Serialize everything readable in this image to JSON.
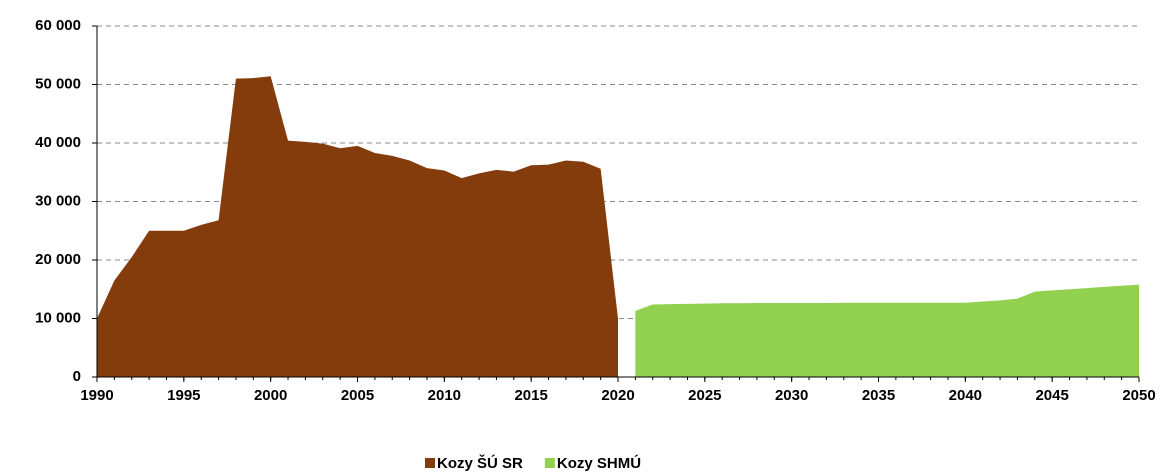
{
  "chart_data": {
    "type": "area",
    "x": [
      1990,
      1991,
      1992,
      1993,
      1994,
      1995,
      1996,
      1997,
      1998,
      1999,
      2000,
      2001,
      2002,
      2003,
      2004,
      2005,
      2006,
      2007,
      2008,
      2009,
      2010,
      2011,
      2012,
      2013,
      2014,
      2015,
      2016,
      2017,
      2018,
      2019,
      2020,
      2021,
      2022,
      2023,
      2024,
      2025,
      2026,
      2027,
      2028,
      2029,
      2030,
      2031,
      2032,
      2033,
      2034,
      2035,
      2036,
      2037,
      2038,
      2039,
      2040,
      2041,
      2042,
      2043,
      2044,
      2045,
      2046,
      2047,
      2048,
      2049,
      2050
    ],
    "series": [
      {
        "name": "Kozy ŠÚ SR",
        "color": "#843c0c",
        "values": [
          10000,
          16500,
          20500,
          25000,
          25000,
          25000,
          26000,
          26800,
          51000,
          51100,
          51400,
          40400,
          40200,
          39900,
          39100,
          39500,
          38300,
          37800,
          37000,
          35700,
          35300,
          34000,
          34800,
          35400,
          35100,
          36200,
          36300,
          37000,
          36800,
          35600,
          10000,
          null,
          null,
          null,
          null,
          null,
          null,
          null,
          null,
          null,
          null,
          null,
          null,
          null,
          null,
          null,
          null,
          null,
          null,
          null,
          null,
          null,
          null,
          null,
          null,
          null,
          null,
          null,
          null,
          null,
          null
        ]
      },
      {
        "name": "Kozy SHMÚ",
        "color": "#92d050",
        "values": [
          null,
          null,
          null,
          null,
          null,
          null,
          null,
          null,
          null,
          null,
          null,
          null,
          null,
          null,
          null,
          null,
          null,
          null,
          null,
          null,
          null,
          null,
          null,
          null,
          null,
          null,
          null,
          null,
          null,
          null,
          null,
          11300,
          12400,
          12450,
          12500,
          12550,
          12600,
          12600,
          12650,
          12650,
          12650,
          12650,
          12650,
          12700,
          12700,
          12700,
          12700,
          12700,
          12700,
          12700,
          12700,
          12900,
          13100,
          13400,
          14600,
          14800,
          15000,
          15200,
          15400,
          15600,
          15800
        ]
      }
    ],
    "xlim": [
      1990,
      2050
    ],
    "xticks": [
      1990,
      1995,
      2000,
      2005,
      2010,
      2015,
      2020,
      2025,
      2030,
      2035,
      2040,
      2045,
      2050
    ],
    "ylim": [
      0,
      60000
    ],
    "yticks": [
      0,
      {
        "value": 10000,
        "label": "10 000"
      },
      {
        "value": 20000,
        "label": "20 000"
      },
      {
        "value": 30000,
        "label": "30 000"
      },
      {
        "value": 40000,
        "label": "40 000"
      },
      {
        "value": 50000,
        "label": "50 000"
      },
      {
        "value": 60000,
        "label": "60 000"
      }
    ],
    "grid": true,
    "legend": "bottom"
  }
}
